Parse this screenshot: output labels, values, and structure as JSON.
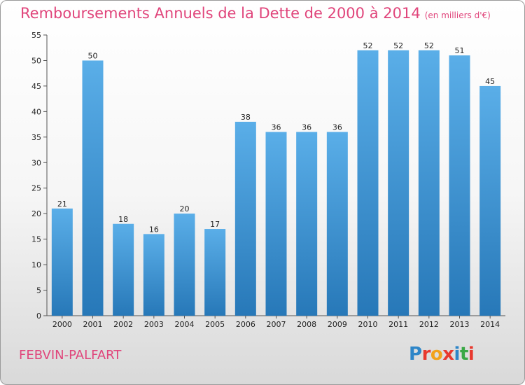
{
  "header": {
    "title": "Remboursements Annuels de la Dette de 2000 à 2014",
    "unit": "(en milliers d'€)"
  },
  "footer": {
    "commune": "FEBVIN-PALFART",
    "logo_text": "Proxiti",
    "logo_letters": [
      {
        "ch": "P",
        "color": "#2e86c8"
      },
      {
        "ch": "r",
        "color": "#e8392e"
      },
      {
        "ch": "o",
        "color": "#f2a21b"
      },
      {
        "ch": "x",
        "color": "#e8392e"
      },
      {
        "ch": "i",
        "color": "#2e86c8"
      },
      {
        "ch": "t",
        "color": "#3aa846"
      },
      {
        "ch": "i",
        "color": "#e8392e"
      }
    ]
  },
  "chart_data": {
    "type": "bar",
    "title": "Remboursements Annuels de la Dette de 2000 à 2014",
    "subtitle": "(en milliers d'€)",
    "categories": [
      "2000",
      "2001",
      "2002",
      "2003",
      "2004",
      "2005",
      "2006",
      "2007",
      "2008",
      "2009",
      "2010",
      "2011",
      "2012",
      "2013",
      "2014"
    ],
    "values": [
      21,
      50,
      18,
      16,
      20,
      17,
      38,
      36,
      36,
      36,
      52,
      52,
      52,
      51,
      45
    ],
    "ylim": [
      0,
      55
    ],
    "yticks": [
      0,
      5,
      10,
      15,
      20,
      25,
      30,
      35,
      40,
      45,
      50,
      55
    ],
    "grid": false,
    "bar_color_top": "#5aaee8",
    "bar_color_bottom": "#2778b8"
  }
}
